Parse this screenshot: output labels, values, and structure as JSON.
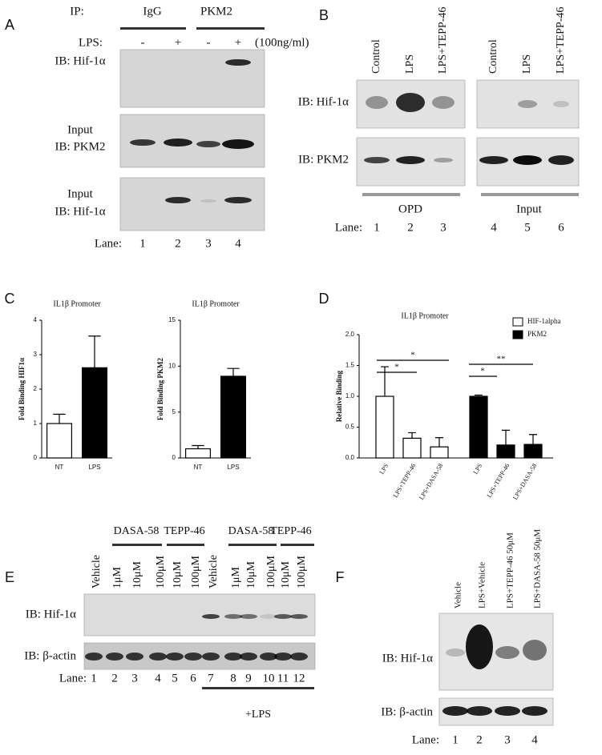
{
  "panels": {
    "A": {
      "label": "A",
      "ip_label": "IP:",
      "ip_groups": [
        "IgG",
        "PKM2"
      ],
      "lps_label": "LPS:",
      "lps_signs": [
        "-",
        "+",
        "-",
        "+"
      ],
      "lps_dose": "(100ng/ml)",
      "rows": [
        [
          "IB: Hif-1α"
        ],
        [
          "Input",
          "IB: PKM2"
        ],
        [
          "Input",
          "IB: Hif-1α"
        ]
      ],
      "lane_label": "Lane:",
      "lanes": [
        "1",
        "2",
        "3",
        "4"
      ]
    },
    "B": {
      "label": "B",
      "columns": [
        "Control",
        "LPS",
        "LPS+TEPP-46",
        "Control",
        "LPS",
        "LPS+TEPP-46"
      ],
      "rows": [
        "IB: Hif-1α",
        "IB: PKM2"
      ],
      "groups": [
        "OPD",
        "Input"
      ],
      "lane_label": "Lane:",
      "lanes": [
        "1",
        "2",
        "3",
        "4",
        "5",
        "6"
      ]
    },
    "C": {
      "label": "C"
    },
    "D": {
      "label": "D"
    },
    "E": {
      "label": "E",
      "groups": [
        "DASA-58",
        "TEPP-46",
        "DASA-58",
        "TEPP-46"
      ],
      "columns": [
        "Vehicle",
        "1μM",
        "10μM",
        "100μM",
        "10μM",
        "100μM",
        "Vehicle",
        "1μM",
        "10μM",
        "100μM",
        "10μM",
        "100μM"
      ],
      "rows": [
        "IB: Hif-1α",
        "IB: β-actin"
      ],
      "lane_label": "Lane:",
      "lanes": [
        "1",
        "2",
        "3",
        "4",
        "5",
        "6",
        "7",
        "8",
        "9",
        "10",
        "11",
        "12"
      ],
      "treatment": "+LPS"
    },
    "F": {
      "label": "F",
      "columns": [
        "Vehicle",
        "LPS+Vehicle",
        "LPS+TEPP-46 50μM",
        "LPS+DASA-58 50μM"
      ],
      "rows": [
        "IB: Hif-1α",
        "IB: β-actin"
      ],
      "lane_label": "Lane:",
      "lanes": [
        "1",
        "2",
        "3",
        "4"
      ]
    }
  },
  "chart_data": [
    {
      "type": "bar",
      "title": "IL1β Promoter",
      "y_label": "Fold Binding HIF1α",
      "categories": [
        "NT",
        "LPS"
      ],
      "values": [
        1.0,
        2.62
      ],
      "errors": [
        0.27,
        0.92
      ],
      "colors": [
        "#ffffff",
        "#000000"
      ],
      "ylim": [
        0,
        4
      ],
      "yticks": [
        0,
        1,
        2,
        3,
        4
      ]
    },
    {
      "type": "bar",
      "title": "IL1β Promoter",
      "y_label": "Fold Binding PKM2",
      "categories": [
        "NT",
        "LPS"
      ],
      "values": [
        1.0,
        8.9
      ],
      "errors": [
        0.35,
        0.85
      ],
      "colors": [
        "#ffffff",
        "#000000"
      ],
      "ylim": [
        0,
        15
      ],
      "yticks": [
        0,
        5,
        10,
        15
      ]
    },
    {
      "type": "grouped-bar",
      "title": "IL1β Promoter",
      "y_label": "Relative Binding",
      "categories": [
        "LPS",
        "LPS+TEPP-46",
        "LPS+DASA-58"
      ],
      "series": [
        {
          "name": "HIF-1alpha",
          "color": "#ffffff",
          "values": [
            1.0,
            0.32,
            0.18
          ],
          "errors": [
            0.48,
            0.09,
            0.15
          ]
        },
        {
          "name": "PKM2",
          "color": "#000000",
          "values": [
            1.0,
            0.21,
            0.22
          ],
          "errors": [
            0.02,
            0.24,
            0.16
          ]
        }
      ],
      "ylim": [
        0,
        2
      ],
      "yticks": [
        {
          "value": 0,
          "label": "0.0"
        },
        {
          "value": 0.5,
          "label": "0.5"
        },
        {
          "value": 1,
          "label": "1.0"
        },
        {
          "value": 1.5,
          "label": "1.5"
        },
        {
          "value": 2,
          "label": "2.0"
        }
      ],
      "legend": "top-right",
      "annotations": [
        "*",
        "*",
        "*",
        "**"
      ]
    }
  ]
}
